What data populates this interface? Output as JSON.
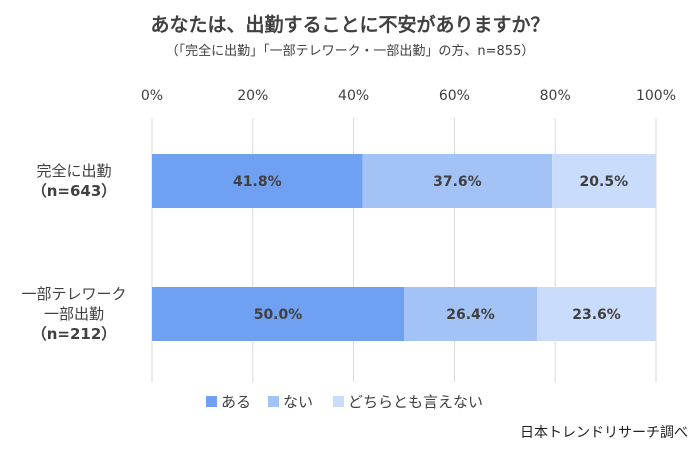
{
  "title": "あなたは、出勤することに不安がありますか？",
  "subtitle": "（「完全に出勤」「一部テレワーク・一部出勤」の方、n=855）",
  "source": "日本トレンドリサーチ調べ",
  "colors": {
    "aru": "#6fa0f2",
    "nai": "#a3c3f7",
    "dochira": "#c9dcfb",
    "grid": "#d9d9d9"
  },
  "chart_data": {
    "type": "bar",
    "orientation": "horizontal",
    "stacked": "percent",
    "categories": [
      {
        "lines": [
          "完全に出勤",
          "（n=643）"
        ]
      },
      {
        "lines": [
          "一部テレワーク",
          "一部出勤",
          "（n=212）"
        ]
      }
    ],
    "series": [
      {
        "name": "ある",
        "values": [
          41.8,
          50.0
        ],
        "labels": [
          "41.8%",
          "50.0%"
        ]
      },
      {
        "name": "ない",
        "values": [
          37.6,
          26.4
        ],
        "labels": [
          "37.6%",
          "26.4%"
        ]
      },
      {
        "name": "どちらとも言えない",
        "values": [
          20.5,
          23.6
        ],
        "labels": [
          "20.5%",
          "23.6%"
        ]
      }
    ],
    "xlim": [
      0,
      100
    ],
    "ticks": [
      "0%",
      "20%",
      "40%",
      "60%",
      "80%",
      "100%"
    ],
    "grid": true,
    "legend": "bottom"
  }
}
